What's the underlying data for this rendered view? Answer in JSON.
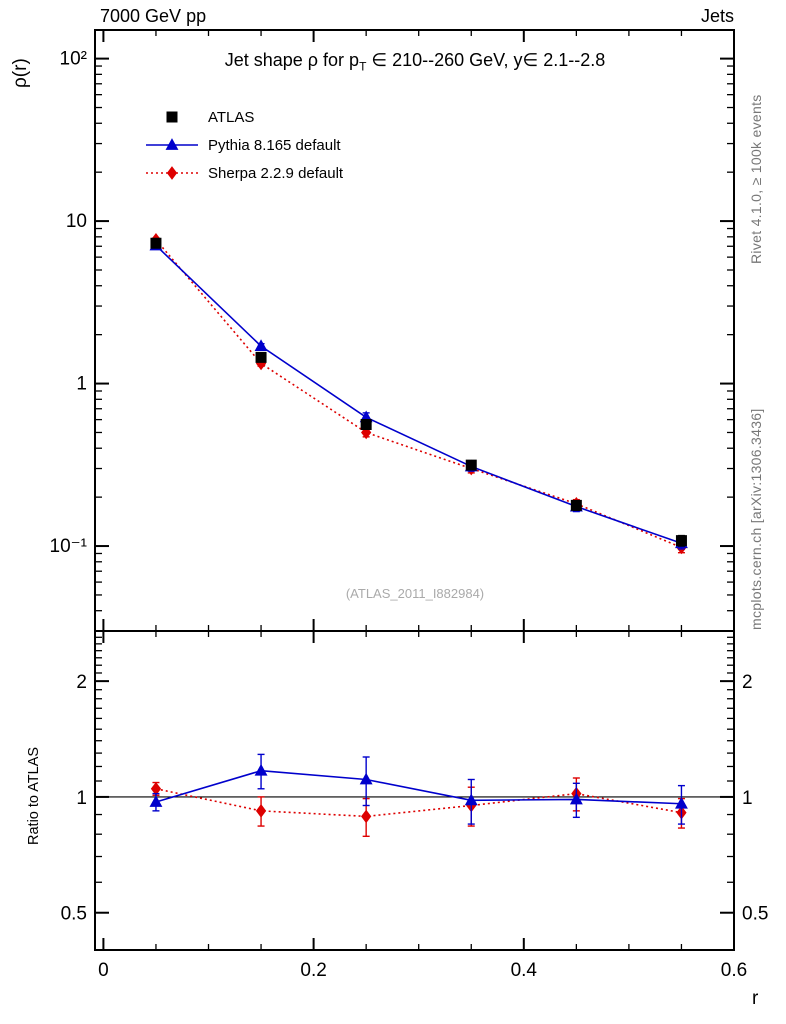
{
  "header": {
    "left": "7000 GeV pp",
    "right": "Jets"
  },
  "title": {
    "pre": "Jet shape ρ for p",
    "sub": "T",
    "post": " ∈ 210--260 GeV, y∈ 2.1--2.8"
  },
  "axes": {
    "y_top_label": "ρ(r)",
    "y_ratio_label": "Ratio to ATLAS",
    "x_label": "r"
  },
  "watermark": "(ATLAS_2011_I882984)",
  "side_notes": {
    "top_right": "Rivet 4.1.0, ≥ 100k events",
    "bottom_right": "mcplots.cern.ch [arXiv:1306.3436]"
  },
  "chart_data": {
    "type": "line",
    "title": "Jet shape ρ for p_T ∈ 210--260 GeV, y∈ 2.1--2.8",
    "legend_position": "top-left-inside",
    "x": [
      0.05,
      0.15,
      0.25,
      0.35,
      0.45,
      0.55
    ],
    "xlim": [
      -0.008,
      0.6
    ],
    "xlabel": "r",
    "x_major_ticks": [
      0,
      0.2,
      0.4,
      0.6
    ],
    "x_major_labels": [
      "0",
      "0.2",
      "0.4",
      "0.6"
    ],
    "x_minor_step": 0.05,
    "top_panel": {
      "ylabel": "ρ(r)",
      "yscale": "log",
      "ylim": [
        0.03,
        150
      ],
      "y_major_ticks": [
        100,
        10,
        1,
        0.1
      ],
      "y_major_labels": [
        "10²",
        "10",
        "1",
        "10⁻¹"
      ],
      "series": [
        {
          "name": "ATLAS",
          "label": "ATLAS",
          "marker": "square",
          "color": "#000000",
          "line": "none",
          "values": [
            7.3,
            1.45,
            0.56,
            0.315,
            0.178,
            0.108
          ],
          "errors": [
            0.3,
            0.08,
            0.035,
            0.02,
            0.012,
            0.008
          ]
        },
        {
          "name": "Pythia 8.165 default",
          "label": "Pythia 8.165 default",
          "marker": "triangle",
          "color": "#0000cc",
          "line": "solid",
          "values": [
            7.08,
            1.7,
            0.62,
            0.309,
            0.175,
            0.104
          ],
          "errors": [
            0.15,
            0.06,
            0.04,
            0.02,
            0.012,
            0.008
          ]
        },
        {
          "name": "Sherpa 2.2.9 default",
          "label": "Sherpa 2.2.9 default",
          "marker": "diamond",
          "color": "#dd0000",
          "line": "dotted",
          "values": [
            7.67,
            1.33,
            0.5,
            0.3,
            0.182,
            0.098
          ],
          "errors": [
            0.2,
            0.05,
            0.03,
            0.018,
            0.011,
            0.007
          ]
        }
      ]
    },
    "ratio_panel": {
      "ylabel": "Ratio to ATLAS",
      "yscale": "log",
      "ylim": [
        0.4,
        2.7
      ],
      "y_major_ticks": [
        2,
        1,
        0.5
      ],
      "y_major_labels": [
        "2",
        "1",
        "0.5"
      ],
      "y_minor_step": 0.1,
      "reference_line": 1,
      "series": [
        {
          "name": "Pythia 8.165 default",
          "marker": "triangle",
          "color": "#0000cc",
          "line": "solid",
          "values": [
            0.97,
            1.17,
            1.11,
            0.98,
            0.985,
            0.96
          ],
          "errors": [
            0.05,
            0.12,
            0.16,
            0.13,
            0.1,
            0.11
          ]
        },
        {
          "name": "Sherpa 2.2.9 default",
          "marker": "diamond",
          "color": "#dd0000",
          "line": "dotted",
          "values": [
            1.05,
            0.92,
            0.89,
            0.95,
            1.02,
            0.91
          ],
          "errors": [
            0.04,
            0.08,
            0.1,
            0.11,
            0.1,
            0.08
          ]
        }
      ]
    }
  }
}
